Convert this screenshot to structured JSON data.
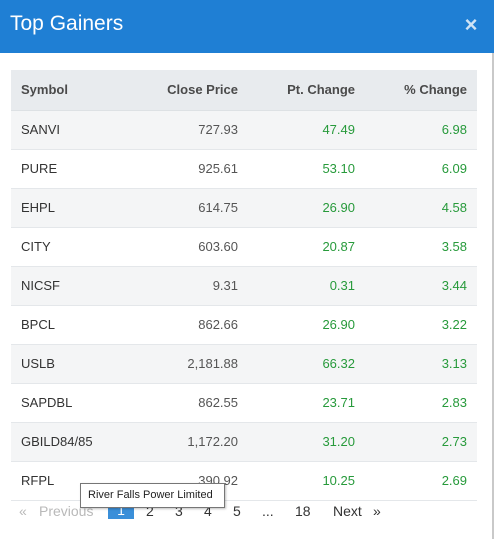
{
  "modal": {
    "title": "Top Gainers",
    "close_glyph": "×",
    "close_icon": "close-icon"
  },
  "table": {
    "headers": {
      "symbol": "Symbol",
      "close": "Close Price",
      "pt": "Pt. Change",
      "pct": "% Change"
    },
    "rows": [
      {
        "symbol": "SANVI",
        "close": "727.93",
        "pt": "47.49",
        "pct": "6.98"
      },
      {
        "symbol": "PURE",
        "close": "925.61",
        "pt": "53.10",
        "pct": "6.09"
      },
      {
        "symbol": "EHPL",
        "close": "614.75",
        "pt": "26.90",
        "pct": "4.58"
      },
      {
        "symbol": "CITY",
        "close": "603.60",
        "pt": "20.87",
        "pct": "3.58"
      },
      {
        "symbol": "NICSF",
        "close": "9.31",
        "pt": "0.31",
        "pct": "3.44"
      },
      {
        "symbol": "BPCL",
        "close": "862.66",
        "pt": "26.90",
        "pct": "3.22"
      },
      {
        "symbol": "USLB",
        "close": "2,181.88",
        "pt": "66.32",
        "pct": "3.13"
      },
      {
        "symbol": "SAPDBL",
        "close": "862.55",
        "pt": "23.71",
        "pct": "2.83"
      },
      {
        "symbol": "GBILD84/85",
        "close": "1,172.20",
        "pt": "31.20",
        "pct": "2.73"
      },
      {
        "symbol": "RFPL",
        "close": "390.92",
        "pt": "10.25",
        "pct": "2.69"
      }
    ]
  },
  "pagination": {
    "first": "«",
    "previous": "Previous",
    "pages": [
      "1",
      "2",
      "3",
      "4",
      "5"
    ],
    "ellipsis": "...",
    "last_page": "18",
    "next": "Next",
    "last": "»",
    "active_page": "1"
  },
  "tooltip": {
    "text": "River Falls Power Limited"
  },
  "colors": {
    "header_bg": "#1f7fd4",
    "positive": "#279a3b",
    "active_page_bg": "#3a8fd9"
  }
}
